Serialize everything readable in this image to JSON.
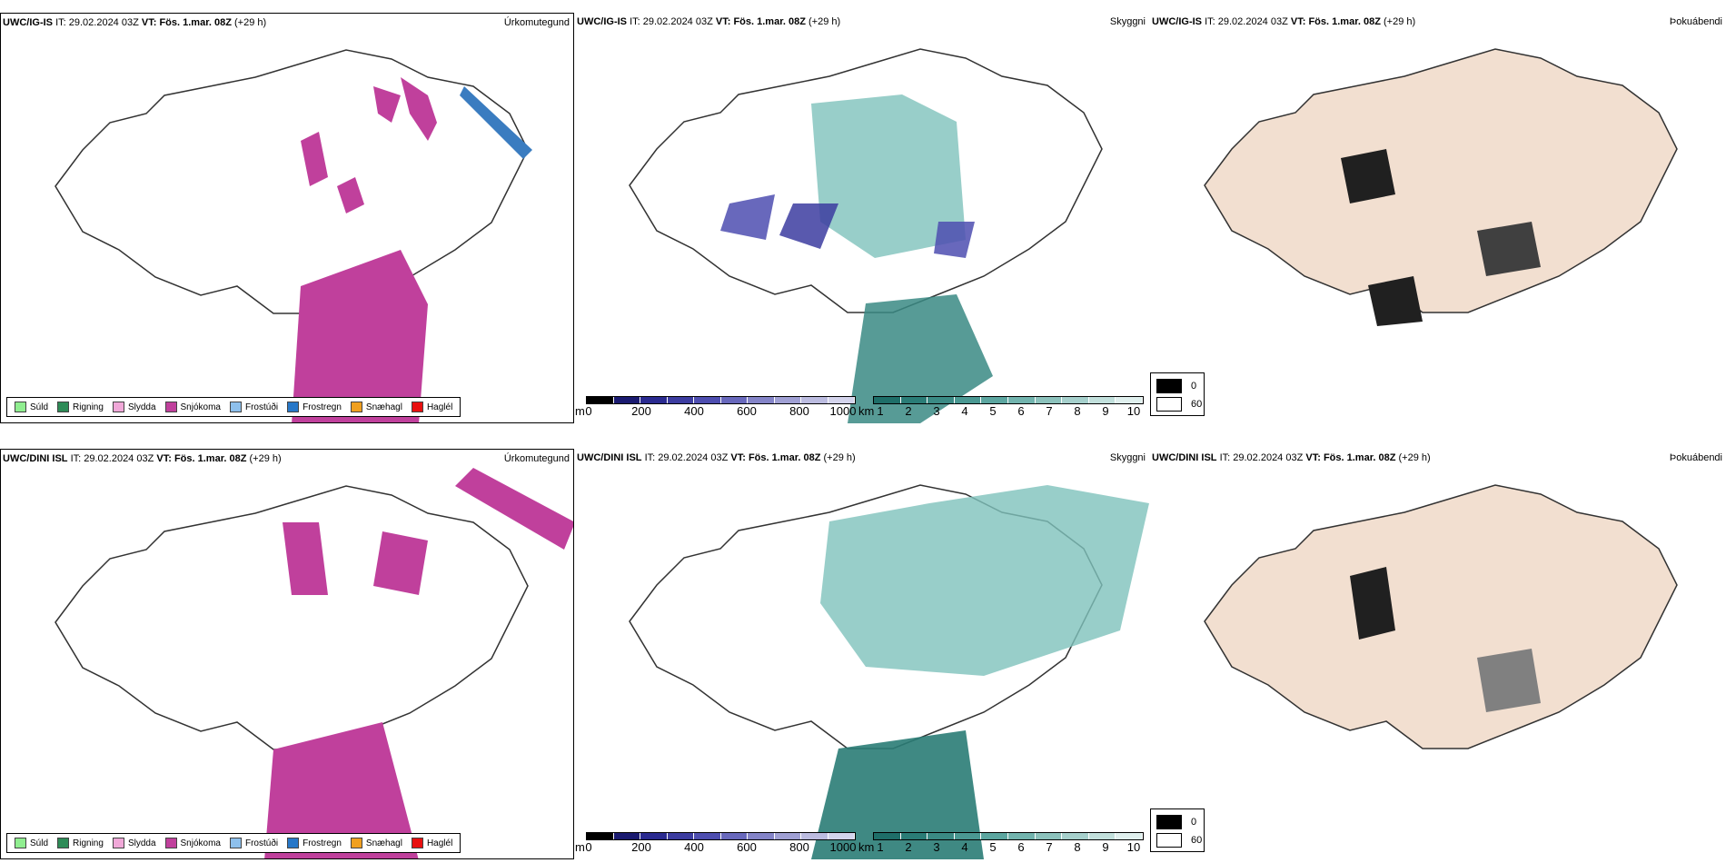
{
  "rows": [
    {
      "model": "UWC/IG-IS",
      "it_label": "IT:",
      "it": "29.02.2024 03Z",
      "vt_label": "VT:",
      "vt": "Fös. 1.mar. 08Z",
      "lead": "(+29 h)"
    },
    {
      "model": "UWC/DINI ISL",
      "it_label": "IT:",
      "it": "29.02.2024 03Z",
      "vt_label": "VT:",
      "vt": "Fös. 1.mar. 08Z",
      "lead": "(+29 h)"
    }
  ],
  "fields": {
    "precip": "Úrkomutegund",
    "cloud": "Skyggni",
    "fog": "Þokuábendi"
  },
  "precip_legend": [
    {
      "label": "Súld",
      "color": "#90ee90"
    },
    {
      "label": "Rigning",
      "color": "#2e8b57"
    },
    {
      "label": "Slydda",
      "color": "#f0a8d8"
    },
    {
      "label": "Snjókoma",
      "color": "#c0409c"
    },
    {
      "label": "Frostúði",
      "color": "#8ec0ec"
    },
    {
      "label": "Frostregn",
      "color": "#2878c8"
    },
    {
      "label": "Snæhagl",
      "color": "#f0a020"
    },
    {
      "label": "Haglél",
      "color": "#e81010"
    }
  ],
  "ceiling_bar": {
    "unit": "m",
    "ticks": [
      "0",
      "200",
      "400",
      "600",
      "800",
      "1000"
    ],
    "colors": [
      "#000000",
      "#1a1a70",
      "#2a2a90",
      "#3c3ca0",
      "#4e4eb0",
      "#6868bc",
      "#8484c8",
      "#a0a0d4",
      "#bcbce0",
      "#d4d4ec"
    ]
  },
  "visibility_bar": {
    "unit": "km",
    "ticks": [
      "1",
      "2",
      "3",
      "4",
      "5",
      "6",
      "7",
      "8",
      "9",
      "10"
    ],
    "colors": [
      "#1e6e68",
      "#2a7c76",
      "#3a8a84",
      "#4a9892",
      "#5ca6a0",
      "#72b4ae",
      "#8cc2bc",
      "#a6d0cc",
      "#c2e0dc",
      "#e0f0ee"
    ]
  },
  "fog_legend": [
    {
      "label": "0",
      "color": "#000000"
    },
    {
      "label": "60",
      "color": "#ffffff"
    }
  ],
  "labels_top": [
    "13",
    "25",
    "318",
    "269",
    "713",
    "356",
    "362",
    "161",
    "105",
    "129",
    "230",
    "247",
    "284",
    "287",
    "16",
    "258",
    "140",
    "7",
    "163"
  ],
  "labels_bottom": [
    "616",
    "200",
    "583",
    "566",
    "381",
    "729",
    "737",
    "367",
    "726",
    "299",
    "175",
    "49",
    "22",
    "166",
    "41"
  ]
}
